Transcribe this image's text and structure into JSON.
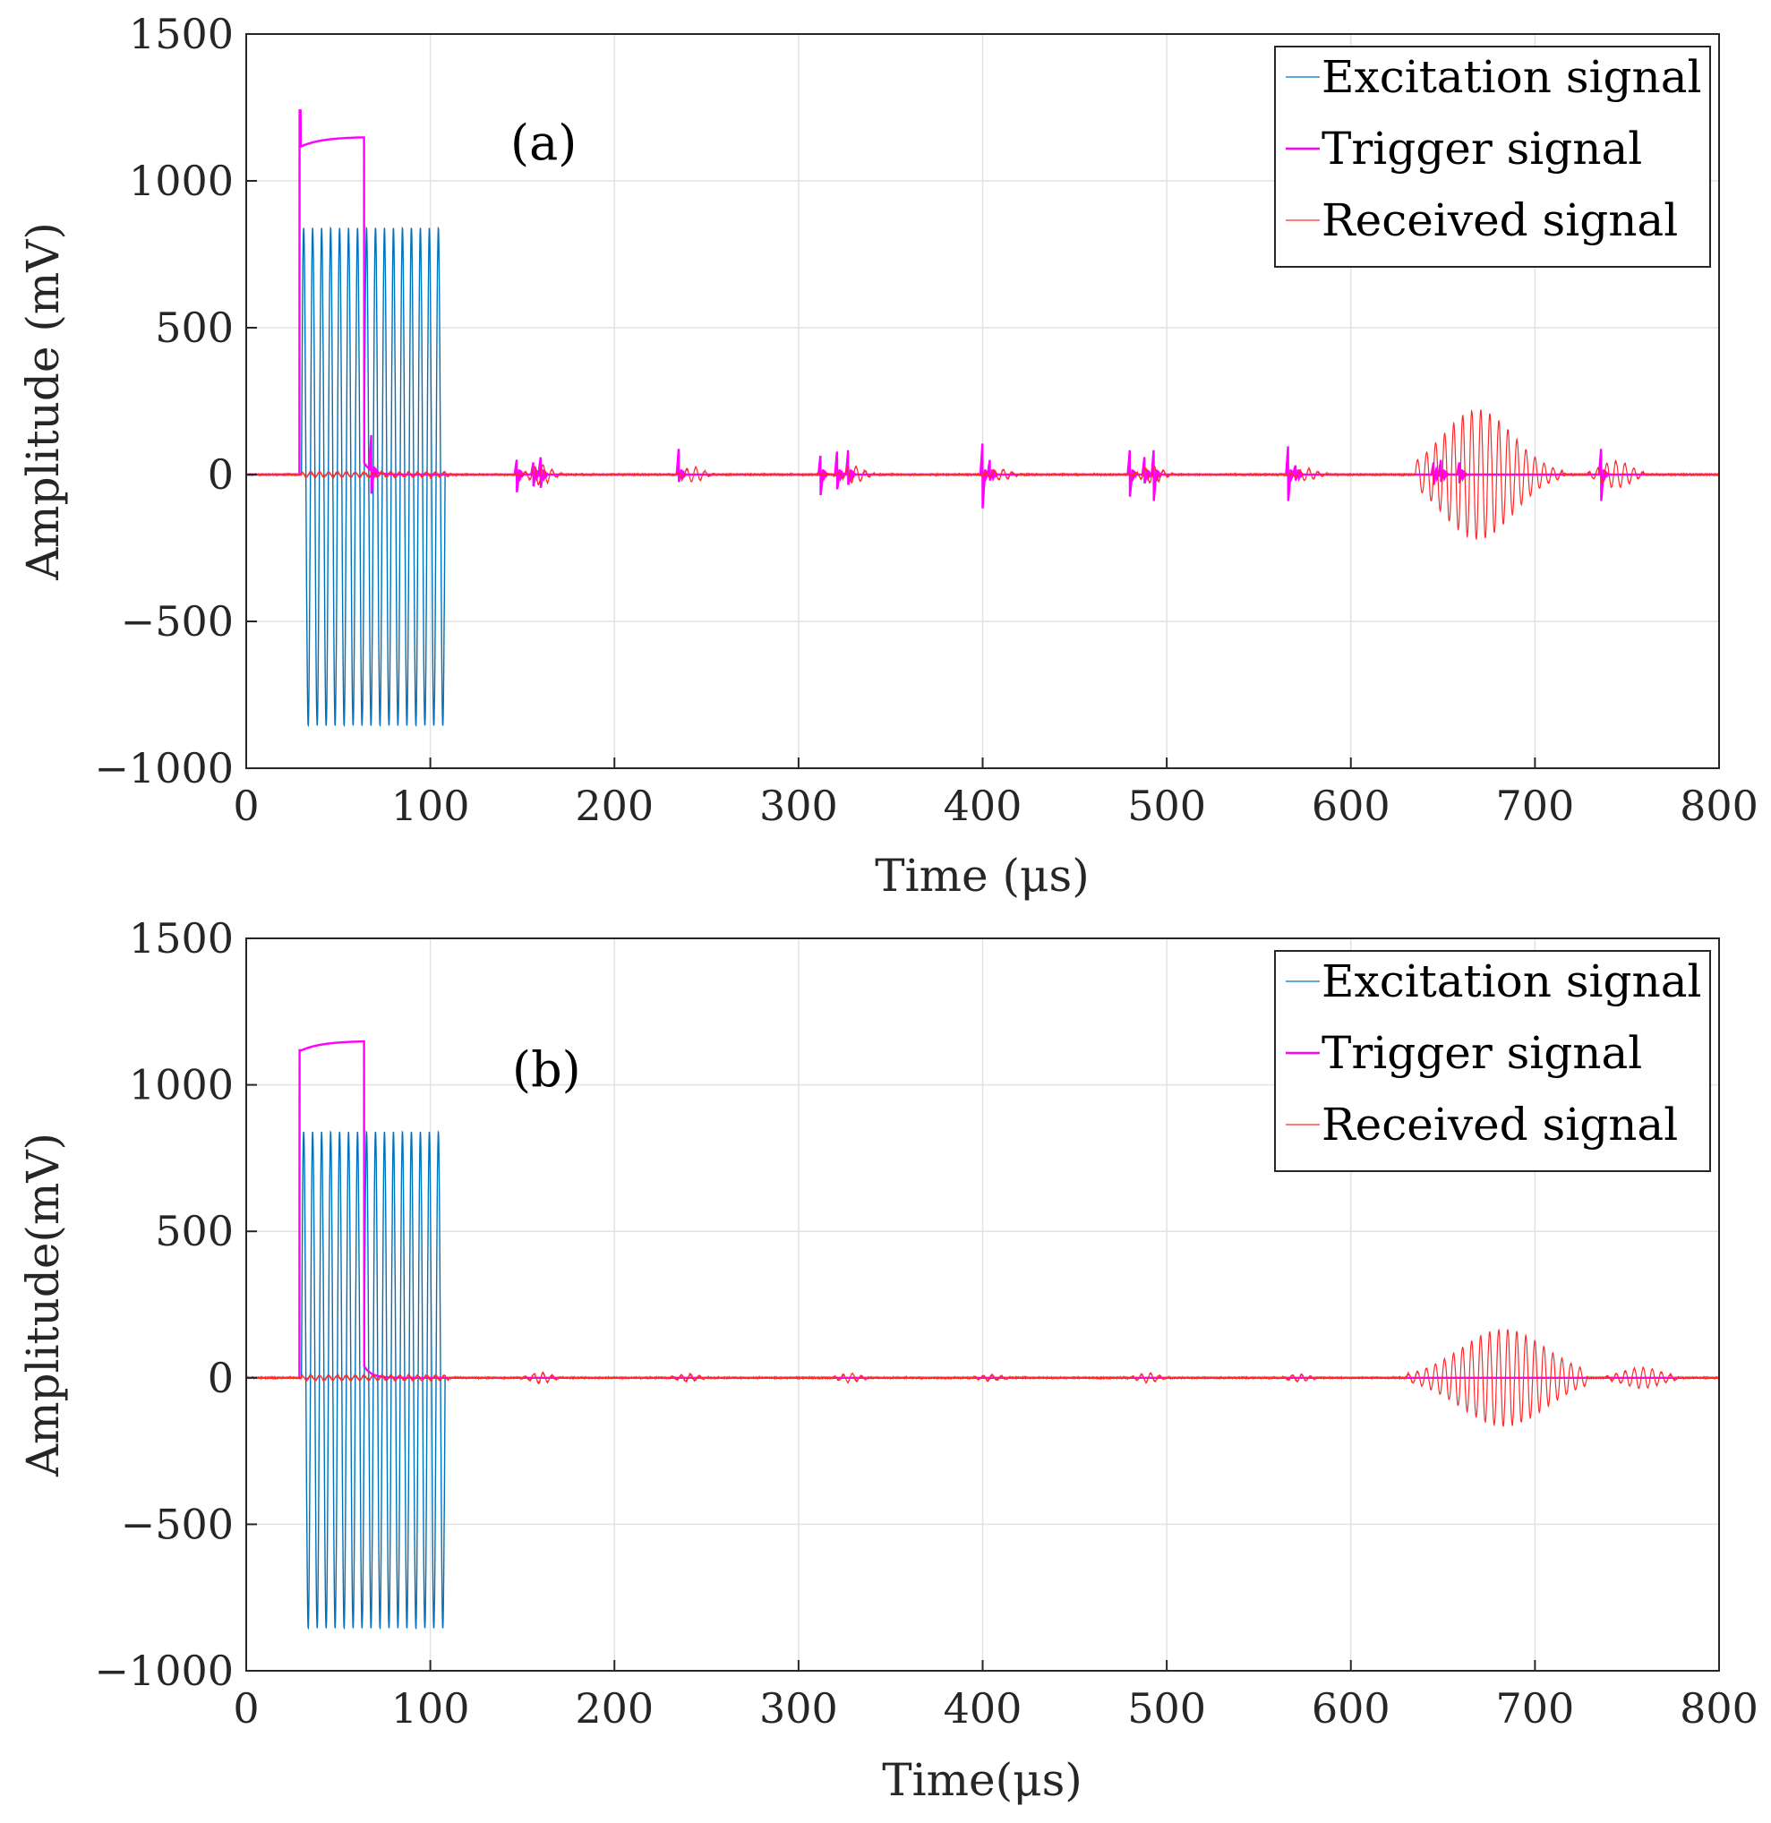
{
  "chart_data": [
    {
      "type": "line",
      "panel_label": "(a)",
      "xlabel": "Time (μs)",
      "ylabel": "Amplitude (mV)",
      "xlim": [
        0,
        800
      ],
      "ylim": [
        -1000,
        1500
      ],
      "xticks": [
        0,
        100,
        200,
        300,
        400,
        500,
        600,
        700,
        800
      ],
      "yticks": [
        -1000,
        -500,
        0,
        500,
        1000,
        1500
      ],
      "ytick_labels": [
        "−1000",
        "−500",
        "0",
        "500",
        "1000",
        "1500"
      ],
      "grid": true,
      "legend_position": "top-right",
      "series": [
        {
          "name": "Excitation signal",
          "color": "#0072BD",
          "shape": "burst",
          "t_start": 30,
          "t_end": 108,
          "cycles": 16,
          "amplitude": 840,
          "low": -855
        },
        {
          "name": "Trigger signal",
          "color": "#FF00FF",
          "shape": "pulse",
          "t_start": 29,
          "t_end": 64,
          "initial_spike": 1240,
          "start_level": 1115,
          "end_level": 1150,
          "spikes": [
            [
              68,
              130,
              -80
            ],
            [
              147,
              55,
              -60
            ],
            [
              156,
              45,
              -40
            ],
            [
              160,
              65,
              -45
            ],
            [
              235,
              95,
              -25
            ],
            [
              312,
              70,
              -70
            ],
            [
              321,
              85,
              -50
            ],
            [
              327,
              90,
              -35
            ],
            [
              400,
              115,
              -115
            ],
            [
              404,
              55,
              -20
            ],
            [
              480,
              90,
              -75
            ],
            [
              488,
              65,
              -30
            ],
            [
              493,
              90,
              -90
            ],
            [
              566,
              105,
              -90
            ],
            [
              570,
              35,
              -20
            ],
            [
              645,
              45,
              -35
            ],
            [
              649,
              55,
              -25
            ],
            [
              659,
              45,
              -30
            ],
            [
              736,
              95,
              -90
            ]
          ]
        },
        {
          "name": "Received signal",
          "color": "#FF2A2A",
          "shape": "echoes",
          "echoes": [
            [
              160,
              35
            ],
            [
              243,
              25
            ],
            [
              330,
              28
            ],
            [
              410,
              18
            ],
            [
              492,
              28
            ],
            [
              576,
              20
            ]
          ],
          "main_echo": {
            "start": 635,
            "end": 715,
            "peak_t": 661,
            "peak_amp": 220
          },
          "tail_echo": {
            "start": 728,
            "end": 760,
            "peak_amp": 45
          }
        }
      ]
    },
    {
      "type": "line",
      "panel_label": "(b)",
      "xlabel": "Time(μs)",
      "ylabel": "Amplitude(mV)",
      "xlim": [
        0,
        800
      ],
      "ylim": [
        -1000,
        1500
      ],
      "xticks": [
        0,
        100,
        200,
        300,
        400,
        500,
        600,
        700,
        800
      ],
      "yticks": [
        -1000,
        -500,
        0,
        500,
        1000,
        1500
      ],
      "ytick_labels": [
        "−1000",
        "−500",
        "0",
        "500",
        "1000",
        "1500"
      ],
      "grid": true,
      "legend_position": "top-right",
      "series": [
        {
          "name": "Excitation signal",
          "color": "#0072BD",
          "shape": "burst",
          "t_start": 30,
          "t_end": 108,
          "cycles": 16,
          "amplitude": 840,
          "low": -855
        },
        {
          "name": "Trigger signal",
          "color": "#FF00FF",
          "shape": "pulse",
          "t_start": 29,
          "t_end": 64,
          "initial_spike": 1118,
          "start_level": 1115,
          "end_level": 1150,
          "spikes": []
        },
        {
          "name": "Received signal",
          "color": "#FF2A2A",
          "shape": "echoes",
          "echoes": [
            [
              160,
              18
            ],
            [
              240,
              12
            ],
            [
              328,
              15
            ],
            [
              404,
              10
            ],
            [
              490,
              16
            ],
            [
              572,
              12
            ]
          ],
          "main_echo": {
            "start": 630,
            "end": 728,
            "peak_t": 675,
            "peak_amp": 165
          },
          "tail_echo": {
            "start": 738,
            "end": 778,
            "peak_amp": 35
          }
        }
      ]
    }
  ]
}
